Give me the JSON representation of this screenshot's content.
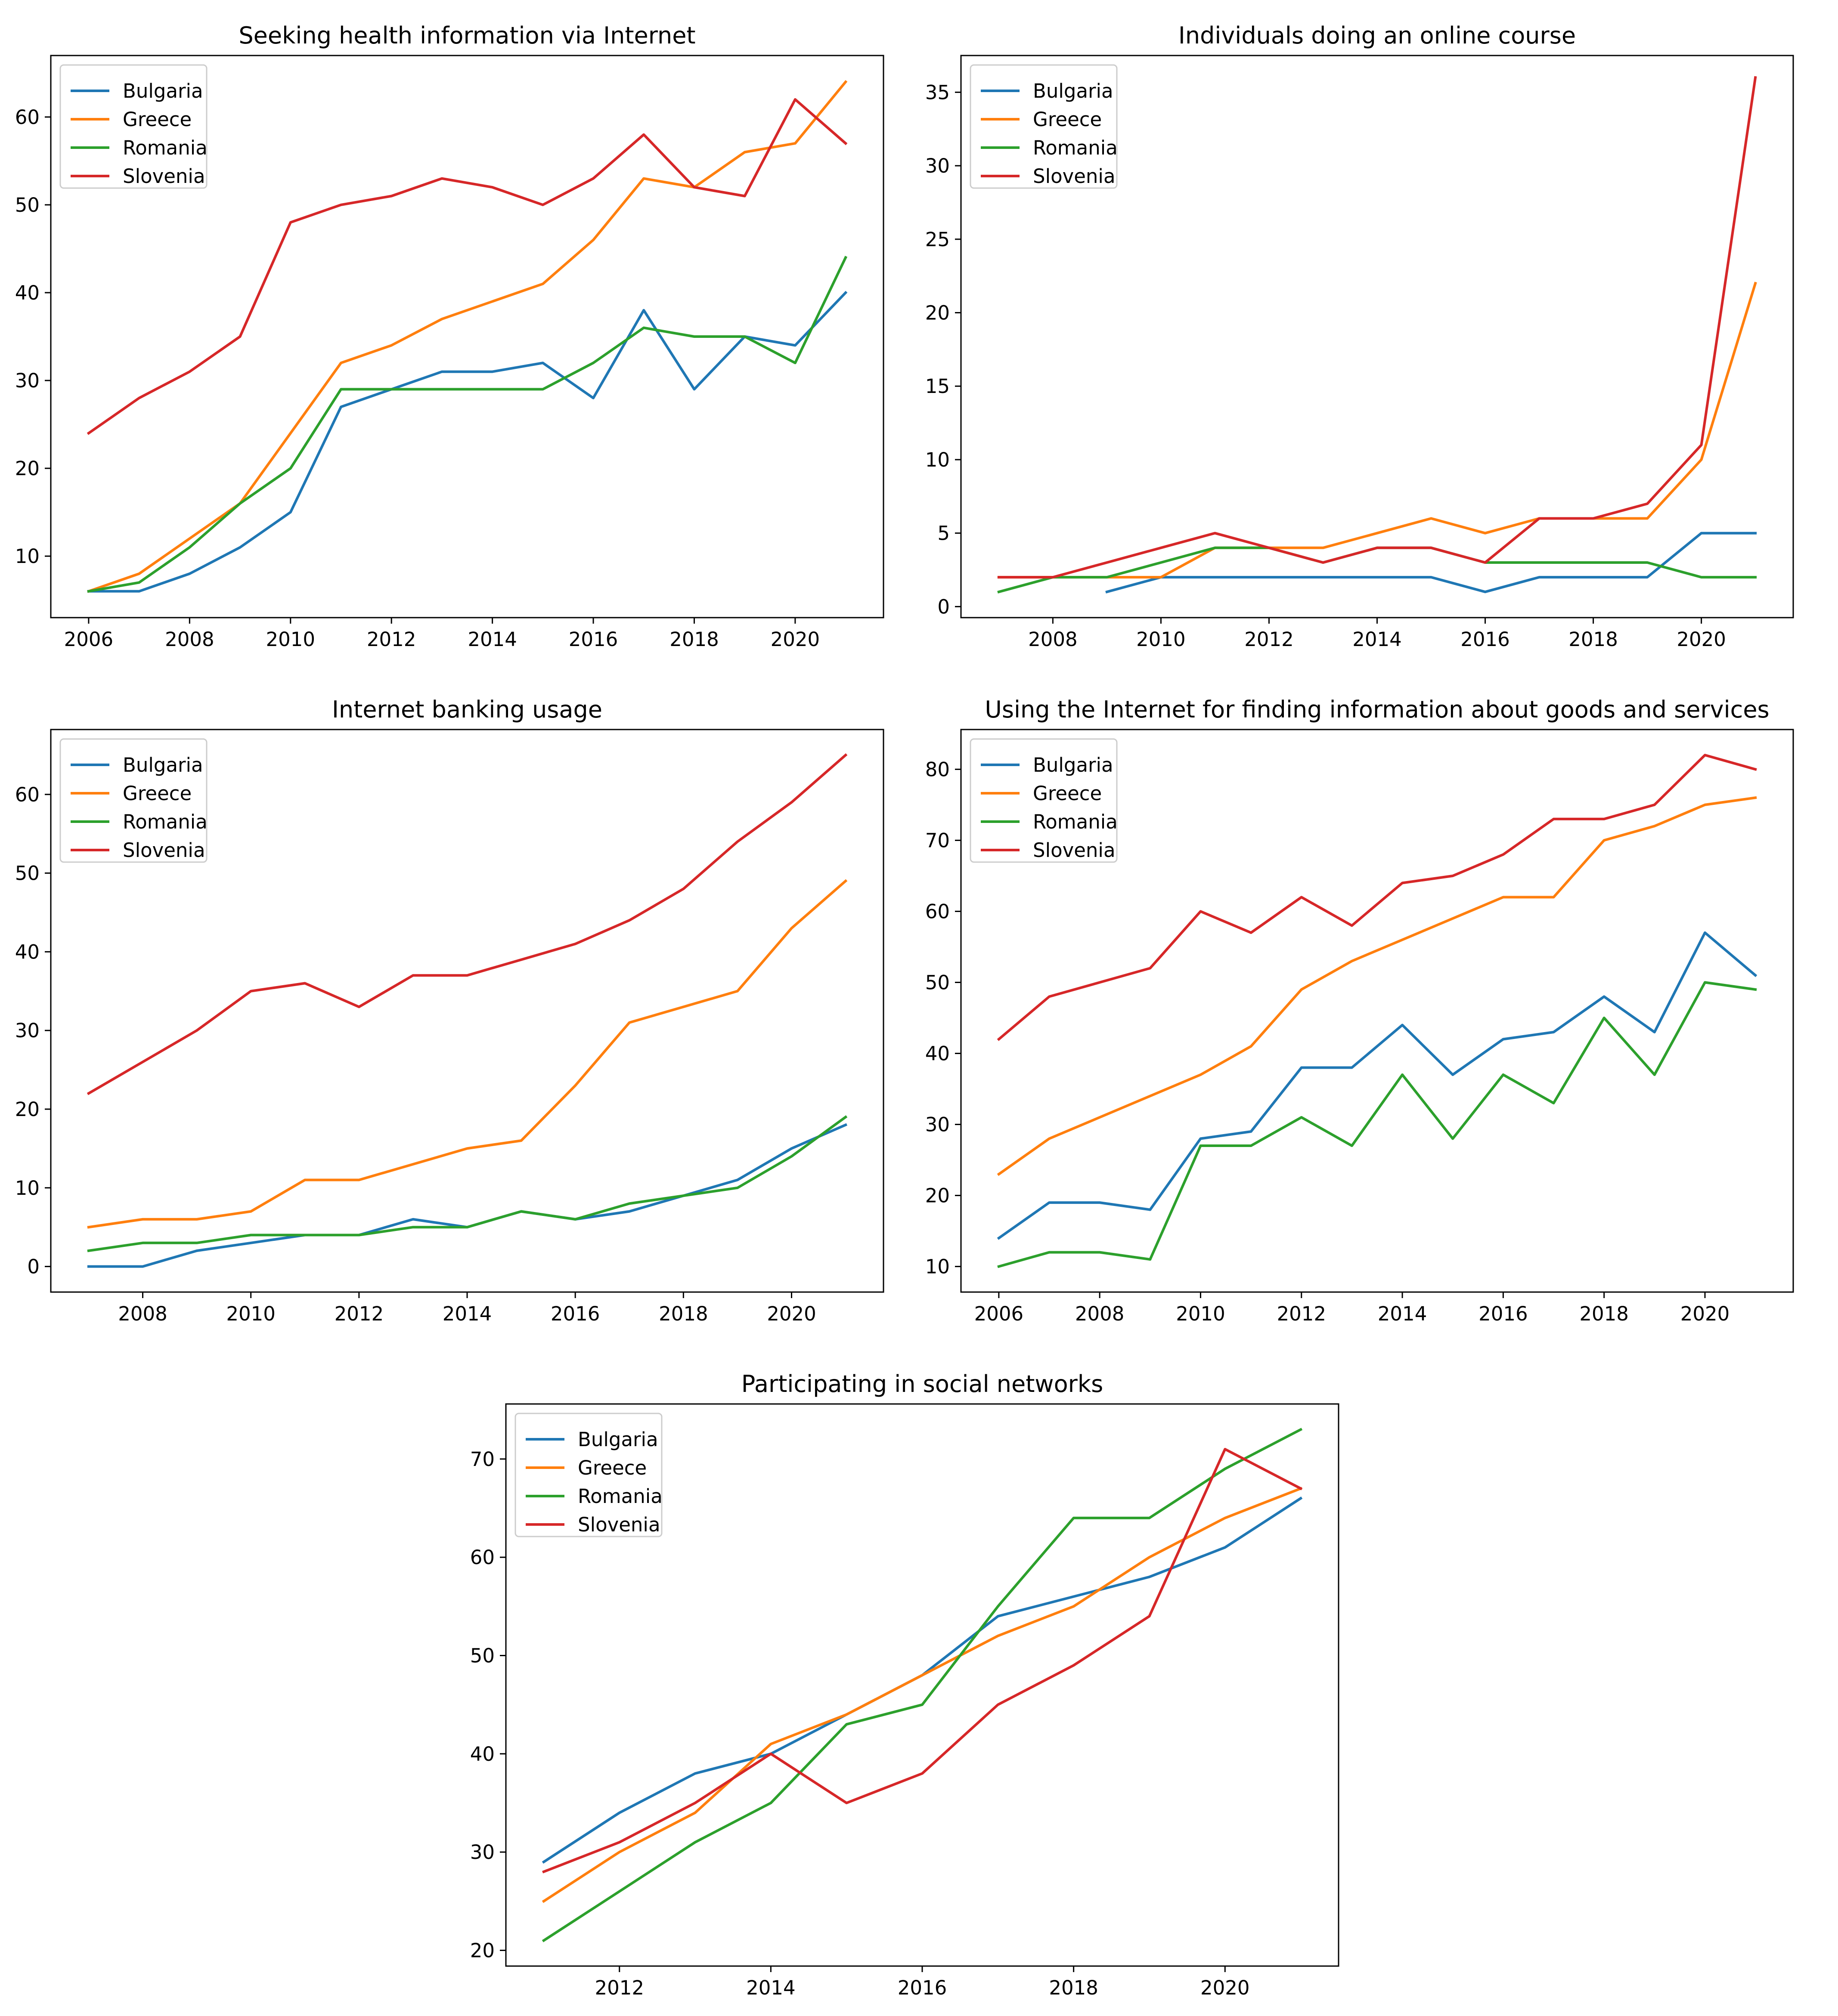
{
  "colors": {
    "Bulgaria": "#1f77b4",
    "Greece": "#ff7f0e",
    "Romania": "#2ca02c",
    "Slovenia": "#d62728"
  },
  "chart_data": [
    {
      "type": "line",
      "title": "Seeking health information via Internet",
      "xlabel": "",
      "ylabel": "",
      "xlim": [
        2005.25,
        2021.75
      ],
      "ylim": [
        3,
        67
      ],
      "xticks": [
        2006,
        2008,
        2010,
        2012,
        2014,
        2016,
        2018,
        2020
      ],
      "yticks": [
        10,
        20,
        30,
        40,
        50,
        60
      ],
      "legend": "top-left",
      "series": [
        {
          "name": "Bulgaria",
          "x": [
            2006,
            2007,
            2008,
            2009,
            2010,
            2011,
            2012,
            2013,
            2014,
            2015,
            2016,
            2017,
            2018,
            2019,
            2020,
            2021
          ],
          "values": [
            6,
            6,
            8,
            11,
            15,
            27,
            29,
            31,
            31,
            32,
            28,
            38,
            29,
            35,
            34,
            40
          ]
        },
        {
          "name": "Greece",
          "x": [
            2006,
            2007,
            2008,
            2009,
            2010,
            2011,
            2012,
            2013,
            2014,
            2015,
            2016,
            2017,
            2018,
            2019,
            2020,
            2021
          ],
          "values": [
            6,
            8,
            12,
            16,
            24,
            32,
            34,
            37,
            39,
            41,
            46,
            53,
            52,
            56,
            57,
            64
          ]
        },
        {
          "name": "Romania",
          "x": [
            2006,
            2007,
            2008,
            2009,
            2010,
            2011,
            2012,
            2013,
            2014,
            2015,
            2016,
            2017,
            2018,
            2019,
            2020,
            2021
          ],
          "values": [
            6,
            7,
            11,
            16,
            20,
            29,
            29,
            29,
            29,
            29,
            32,
            36,
            35,
            35,
            32,
            44
          ]
        },
        {
          "name": "Slovenia",
          "x": [
            2006,
            2007,
            2008,
            2009,
            2010,
            2011,
            2012,
            2013,
            2014,
            2015,
            2016,
            2017,
            2018,
            2019,
            2020,
            2021
          ],
          "values": [
            24,
            28,
            31,
            35,
            48,
            50,
            51,
            53,
            52,
            50,
            53,
            58,
            52,
            51,
            62,
            57
          ]
        }
      ]
    },
    {
      "type": "line",
      "title": "Individuals doing an online course",
      "xlabel": "",
      "ylabel": "",
      "xlim": [
        2006.3,
        2021.7
      ],
      "ylim": [
        -0.75,
        37.5
      ],
      "xticks": [
        2008,
        2010,
        2012,
        2014,
        2016,
        2018,
        2020
      ],
      "yticks": [
        0,
        5,
        10,
        15,
        20,
        25,
        30,
        35
      ],
      "legend": "top-left",
      "series": [
        {
          "name": "Bulgaria",
          "x": [
            2009,
            2010,
            2011,
            2012,
            2013,
            2014,
            2015,
            2016,
            2017,
            2018,
            2019,
            2020,
            2021
          ],
          "values": [
            1,
            2,
            2,
            2,
            2,
            2,
            2,
            1,
            2,
            2,
            2,
            5,
            5
          ]
        },
        {
          "name": "Greece",
          "x": [
            2007,
            2008,
            2009,
            2010,
            2011,
            2012,
            2013,
            2014,
            2015,
            2016,
            2017,
            2018,
            2019,
            2020,
            2021
          ],
          "values": [
            2,
            2,
            2,
            2,
            4,
            4,
            4,
            5,
            6,
            5,
            6,
            6,
            6,
            10,
            22
          ]
        },
        {
          "name": "Romania",
          "x": [
            2007,
            2008,
            2009,
            2010,
            2011,
            2012,
            2013,
            2014,
            2015,
            2016,
            2017,
            2018,
            2019,
            2020,
            2021
          ],
          "values": [
            1,
            2,
            2,
            3,
            4,
            4,
            3,
            4,
            4,
            3,
            3,
            3,
            3,
            2,
            2
          ]
        },
        {
          "name": "Slovenia",
          "x": [
            2007,
            2008,
            2009,
            2010,
            2011,
            2012,
            2013,
            2014,
            2015,
            2016,
            2017,
            2018,
            2019,
            2020,
            2021
          ],
          "values": [
            2,
            2,
            3,
            4,
            5,
            4,
            3,
            4,
            4,
            3,
            6,
            6,
            7,
            11,
            36
          ]
        }
      ]
    },
    {
      "type": "line",
      "title": "Internet banking usage",
      "xlabel": "",
      "ylabel": "",
      "xlim": [
        2006.3,
        2021.7
      ],
      "ylim": [
        -3.25,
        68.25
      ],
      "xticks": [
        2008,
        2010,
        2012,
        2014,
        2016,
        2018,
        2020
      ],
      "yticks": [
        0,
        10,
        20,
        30,
        40,
        50,
        60
      ],
      "legend": "top-left",
      "series": [
        {
          "name": "Bulgaria",
          "x": [
            2007,
            2008,
            2009,
            2010,
            2011,
            2012,
            2013,
            2014,
            2015,
            2016,
            2017,
            2018,
            2019,
            2020,
            2021
          ],
          "values": [
            0,
            0,
            2,
            3,
            4,
            4,
            6,
            5,
            7,
            6,
            7,
            9,
            11,
            15,
            18
          ]
        },
        {
          "name": "Greece",
          "x": [
            2007,
            2008,
            2009,
            2010,
            2011,
            2012,
            2013,
            2014,
            2015,
            2016,
            2017,
            2018,
            2019,
            2020,
            2021
          ],
          "values": [
            5,
            6,
            6,
            7,
            11,
            11,
            13,
            15,
            16,
            23,
            31,
            33,
            35,
            43,
            49
          ]
        },
        {
          "name": "Romania",
          "x": [
            2007,
            2008,
            2009,
            2010,
            2011,
            2012,
            2013,
            2014,
            2015,
            2016,
            2017,
            2018,
            2019,
            2020,
            2021
          ],
          "values": [
            2,
            3,
            3,
            4,
            4,
            4,
            5,
            5,
            7,
            6,
            8,
            9,
            10,
            14,
            19
          ]
        },
        {
          "name": "Slovenia",
          "x": [
            2007,
            2008,
            2009,
            2010,
            2011,
            2012,
            2013,
            2014,
            2015,
            2016,
            2017,
            2018,
            2019,
            2020,
            2021
          ],
          "values": [
            22,
            26,
            30,
            35,
            36,
            33,
            37,
            37,
            39,
            41,
            44,
            48,
            54,
            59,
            65
          ]
        }
      ]
    },
    {
      "type": "line",
      "title": "Using the Internet for finding information about goods and services",
      "xlabel": "",
      "ylabel": "",
      "xlim": [
        2005.25,
        2021.75
      ],
      "ylim": [
        6.4,
        85.6
      ],
      "xticks": [
        2006,
        2008,
        2010,
        2012,
        2014,
        2016,
        2018,
        2020
      ],
      "yticks": [
        10,
        20,
        30,
        40,
        50,
        60,
        70,
        80
      ],
      "legend": "top-left",
      "series": [
        {
          "name": "Bulgaria",
          "x": [
            2006,
            2007,
            2008,
            2009,
            2010,
            2011,
            2012,
            2013,
            2014,
            2015,
            2016,
            2017,
            2018,
            2019,
            2020,
            2021
          ],
          "values": [
            14,
            19,
            19,
            18,
            28,
            29,
            38,
            38,
            44,
            37,
            42,
            43,
            48,
            43,
            57,
            51
          ]
        },
        {
          "name": "Greece",
          "x": [
            2006,
            2007,
            2008,
            2009,
            2010,
            2011,
            2012,
            2013,
            2014,
            2015,
            2016,
            2017,
            2018,
            2019,
            2020,
            2021
          ],
          "values": [
            23,
            28,
            31,
            34,
            37,
            41,
            49,
            53,
            56,
            59,
            62,
            62,
            70,
            72,
            75,
            76
          ]
        },
        {
          "name": "Romania",
          "x": [
            2006,
            2007,
            2008,
            2009,
            2010,
            2011,
            2012,
            2013,
            2014,
            2015,
            2016,
            2017,
            2018,
            2019,
            2020,
            2021
          ],
          "values": [
            10,
            12,
            12,
            11,
            27,
            27,
            31,
            27,
            37,
            28,
            37,
            33,
            45,
            37,
            50,
            49
          ]
        },
        {
          "name": "Slovenia",
          "x": [
            2006,
            2007,
            2008,
            2009,
            2010,
            2011,
            2012,
            2013,
            2014,
            2015,
            2016,
            2017,
            2018,
            2019,
            2020,
            2021
          ],
          "values": [
            42,
            48,
            50,
            52,
            60,
            57,
            62,
            58,
            64,
            65,
            68,
            73,
            73,
            75,
            82,
            80
          ]
        }
      ]
    },
    {
      "type": "line",
      "title": "Participating in social networks",
      "xlabel": "",
      "ylabel": "",
      "xlim": [
        2010.5,
        2021.5
      ],
      "ylim": [
        18.4,
        75.6
      ],
      "xticks": [
        2012,
        2014,
        2016,
        2018,
        2020
      ],
      "yticks": [
        20,
        30,
        40,
        50,
        60,
        70
      ],
      "legend": "top-left",
      "series": [
        {
          "name": "Bulgaria",
          "x": [
            2011,
            2012,
            2013,
            2014,
            2015,
            2016,
            2017,
            2018,
            2019,
            2020,
            2021
          ],
          "values": [
            29,
            34,
            38,
            40,
            44,
            48,
            54,
            56,
            58,
            61,
            66
          ]
        },
        {
          "name": "Greece",
          "x": [
            2011,
            2012,
            2013,
            2014,
            2015,
            2016,
            2017,
            2018,
            2019,
            2020,
            2021
          ],
          "values": [
            25,
            30,
            34,
            41,
            44,
            48,
            52,
            55,
            60,
            64,
            67
          ]
        },
        {
          "name": "Romania",
          "x": [
            2011,
            2012,
            2013,
            2014,
            2015,
            2016,
            2017,
            2018,
            2019,
            2020,
            2021
          ],
          "values": [
            21,
            26,
            31,
            35,
            43,
            45,
            55,
            64,
            64,
            69,
            73
          ]
        },
        {
          "name": "Slovenia",
          "x": [
            2011,
            2012,
            2013,
            2014,
            2015,
            2016,
            2017,
            2018,
            2019,
            2020,
            2021
          ],
          "values": [
            28,
            31,
            35,
            40,
            35,
            38,
            45,
            49,
            54,
            71,
            67
          ]
        }
      ]
    }
  ]
}
